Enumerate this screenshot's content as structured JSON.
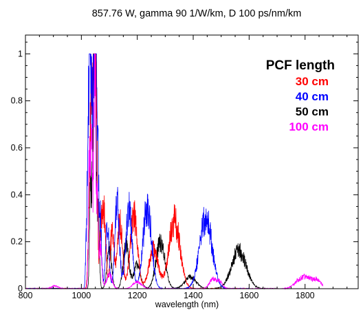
{
  "chart_data": {
    "type": "line",
    "title": "857.76 W, gamma 90 1/W/km, D 100 ps/nm/km",
    "xlabel": "wavelength (nm)",
    "ylabel": "",
    "xlim": [
      800,
      1990
    ],
    "ylim": [
      0,
      1.08
    ],
    "x_ticks": [
      800,
      1000,
      1200,
      1400,
      1600,
      1800
    ],
    "y_ticks": [
      0,
      0.2,
      0.4,
      0.6,
      0.8,
      1
    ],
    "x_tick_labels": [
      "800",
      "1000",
      "1200",
      "1400",
      "1600",
      "1800"
    ],
    "y_tick_labels": [
      "0",
      "0.2",
      "0.4",
      "0.6",
      "0.8",
      "1"
    ],
    "grid": false,
    "legend_title": "PCF length",
    "legend_position": "top-right",
    "series": [
      {
        "name": "30 cm",
        "color": "#ff0000",
        "peaks": [
          {
            "center": 1028,
            "height": 0.35,
            "width": 4
          },
          {
            "center": 1033,
            "height": 0.4,
            "width": 3
          },
          {
            "center": 1038,
            "height": 0.55,
            "width": 3
          },
          {
            "center": 1044,
            "height": 0.95,
            "width": 3
          },
          {
            "center": 1050,
            "height": 0.98,
            "width": 3
          },
          {
            "center": 1056,
            "height": 0.5,
            "width": 3
          },
          {
            "center": 1070,
            "height": 0.25,
            "width": 5
          },
          {
            "center": 1082,
            "height": 0.31,
            "width": 6
          },
          {
            "center": 1110,
            "height": 0.24,
            "width": 7
          },
          {
            "center": 1138,
            "height": 0.28,
            "width": 9
          },
          {
            "center": 1188,
            "height": 0.31,
            "width": 13
          },
          {
            "center": 1258,
            "height": 0.17,
            "width": 16
          },
          {
            "center": 1333,
            "height": 0.29,
            "width": 20
          }
        ]
      },
      {
        "name": "40 cm",
        "color": "#0000ff",
        "peaks": [
          {
            "center": 1018,
            "height": 0.2,
            "width": 3
          },
          {
            "center": 1024,
            "height": 0.55,
            "width": 3
          },
          {
            "center": 1030,
            "height": 0.85,
            "width": 3
          },
          {
            "center": 1036,
            "height": 0.6,
            "width": 3
          },
          {
            "center": 1042,
            "height": 0.7,
            "width": 3
          },
          {
            "center": 1048,
            "height": 0.88,
            "width": 3
          },
          {
            "center": 1052,
            "height": 0.99,
            "width": 2.5
          },
          {
            "center": 1058,
            "height": 0.6,
            "width": 3
          },
          {
            "center": 1067,
            "height": 0.32,
            "width": 5
          },
          {
            "center": 1093,
            "height": 0.28,
            "width": 6
          },
          {
            "center": 1128,
            "height": 0.36,
            "width": 8
          },
          {
            "center": 1170,
            "height": 0.34,
            "width": 11
          },
          {
            "center": 1236,
            "height": 0.35,
            "width": 15
          },
          {
            "center": 1445,
            "height": 0.3,
            "width": 22
          }
        ]
      },
      {
        "name": "50 cm",
        "color": "#000000",
        "peaks": [
          {
            "center": 1032,
            "height": 0.45,
            "width": 3
          },
          {
            "center": 1040,
            "height": 0.55,
            "width": 3
          },
          {
            "center": 1046,
            "height": 0.9,
            "width": 3
          },
          {
            "center": 1051,
            "height": 0.95,
            "width": 2.5
          },
          {
            "center": 1060,
            "height": 0.35,
            "width": 4
          },
          {
            "center": 1100,
            "height": 0.17,
            "width": 8
          },
          {
            "center": 1160,
            "height": 0.19,
            "width": 10
          },
          {
            "center": 1200,
            "height": 0.1,
            "width": 12
          },
          {
            "center": 1283,
            "height": 0.2,
            "width": 16
          },
          {
            "center": 1390,
            "height": 0.05,
            "width": 20
          },
          {
            "center": 1563,
            "height": 0.16,
            "width": 26
          }
        ]
      },
      {
        "name": "100 cm",
        "color": "#ff00ff",
        "peaks": [
          {
            "center": 905,
            "height": 0.012,
            "width": 12
          },
          {
            "center": 1028,
            "height": 0.55,
            "width": 3
          },
          {
            "center": 1036,
            "height": 0.7,
            "width": 3
          },
          {
            "center": 1044,
            "height": 0.4,
            "width": 3
          },
          {
            "center": 1049,
            "height": 0.97,
            "width": 2.5
          },
          {
            "center": 1057,
            "height": 0.45,
            "width": 3
          },
          {
            "center": 1068,
            "height": 0.18,
            "width": 5
          },
          {
            "center": 1100,
            "height": 0.06,
            "width": 10
          },
          {
            "center": 1200,
            "height": 0.03,
            "width": 15
          },
          {
            "center": 1470,
            "height": 0.04,
            "width": 12
          },
          {
            "center": 1495,
            "height": 0.03,
            "width": 10
          },
          {
            "center": 1780,
            "height": 0.03,
            "width": 20
          },
          {
            "center": 1810,
            "height": 0.035,
            "width": 20
          },
          {
            "center": 1845,
            "height": 0.03,
            "width": 15
          }
        ]
      }
    ]
  }
}
